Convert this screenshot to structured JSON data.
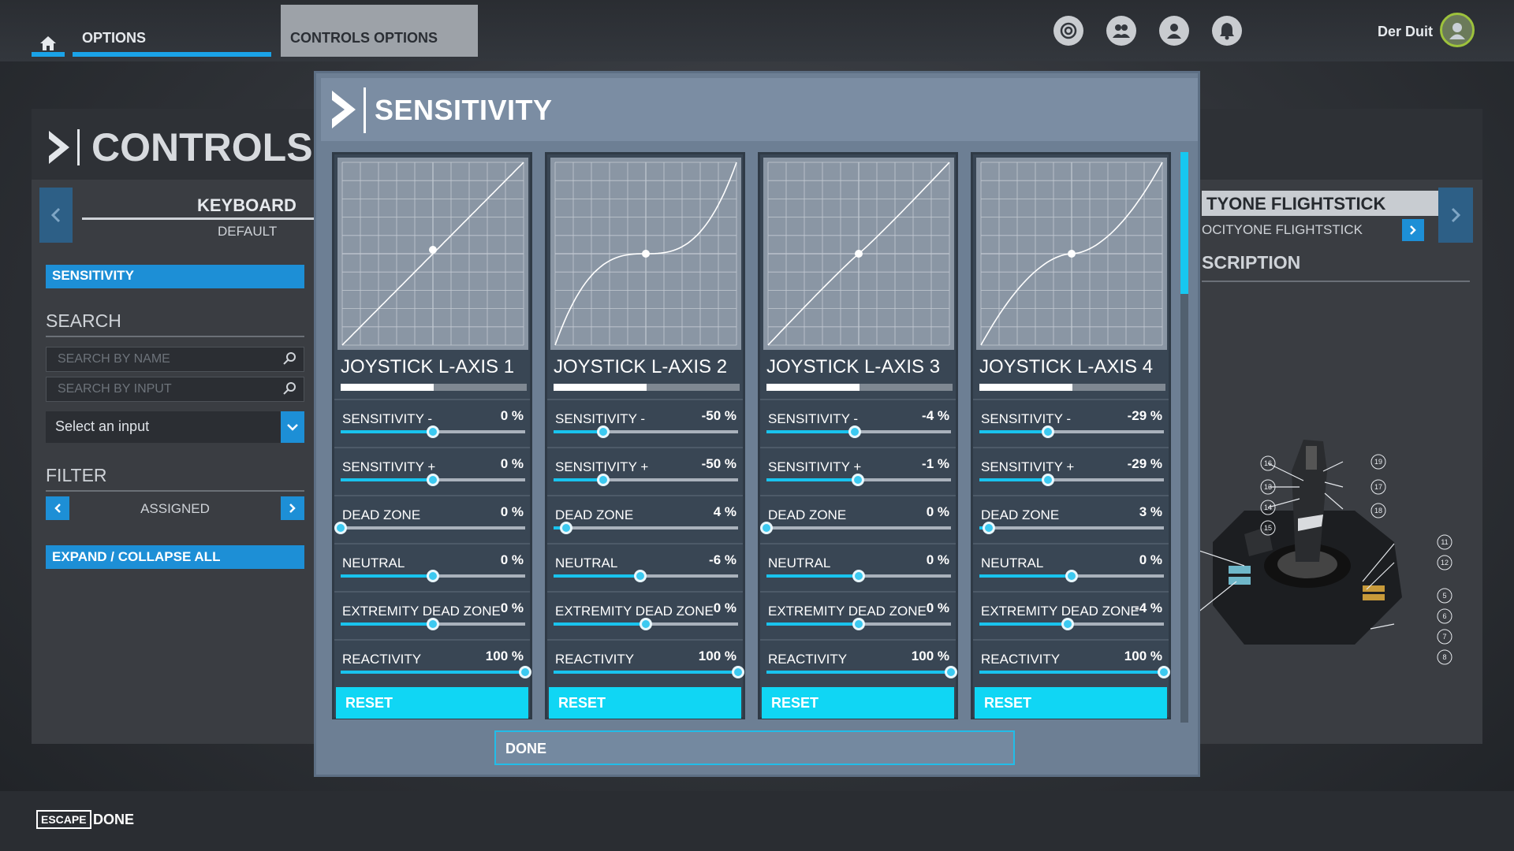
{
  "topbar": {
    "tab_options": "OPTIONS",
    "tab_controls_options": "CONTROLS OPTIONS",
    "icons": [
      "achievements-icon",
      "friends-icon",
      "profile-icon",
      "notifications-icon"
    ],
    "user_name": "Der Duit"
  },
  "left_panel": {
    "title": "CONTROLS OPTIONS",
    "device_title": "KEYBOARD",
    "device_profile": "DEFAULT",
    "sensitivity_button": "SENSITIVITY",
    "search_label": "SEARCH",
    "search_by_name_placeholder": "SEARCH BY NAME",
    "search_by_input_placeholder": "SEARCH BY INPUT",
    "select_input_label": "Select an input",
    "filter_label": "FILTER",
    "filter_value": "ASSIGNED",
    "expand_collapse_label": "EXPAND / COLLAPSE ALL"
  },
  "right_panel": {
    "device_title": "TYONE FLIGHTSTICK",
    "device_subtitle": "OCITYONE FLIGHTSTICK",
    "description_label": "SCRIPTION",
    "callouts": [
      "16",
      "13",
      "14",
      "15",
      "19",
      "17",
      "18",
      "11",
      "12",
      "5",
      "6",
      "7",
      "8"
    ]
  },
  "modal": {
    "title": "SENSITIVITY",
    "reset_label": "RESET",
    "done_label": "DONE",
    "scroll_position": 0,
    "axes": [
      {
        "name": "JOYSTICK L-AXIS 1",
        "output_level": 0.5,
        "curve_exponent": 1.0,
        "rows": [
          {
            "label": "SENSITIVITY -",
            "value": "0 %",
            "level": 0.5
          },
          {
            "label": "SENSITIVITY +",
            "value": "0 %",
            "level": 0.5
          },
          {
            "label": "DEAD ZONE",
            "value": "0 %",
            "level": 0.0
          },
          {
            "label": "NEUTRAL",
            "value": "0 %",
            "level": 0.5
          },
          {
            "label": "EXTREMITY DEAD ZONE",
            "value": "0 %",
            "level": 0.5
          },
          {
            "label": "REACTIVITY",
            "value": "100 %",
            "level": 1.0
          }
        ]
      },
      {
        "name": "JOYSTICK L-AXIS 2",
        "output_level": 0.5,
        "curve_exponent": 2.8,
        "rows": [
          {
            "label": "SENSITIVITY -",
            "value": "-50 %",
            "level": 0.27
          },
          {
            "label": "SENSITIVITY +",
            "value": "-50 %",
            "level": 0.27
          },
          {
            "label": "DEAD ZONE",
            "value": "4 %",
            "level": 0.07
          },
          {
            "label": "NEUTRAL",
            "value": "-6 %",
            "level": 0.47
          },
          {
            "label": "EXTREMITY DEAD ZONE",
            "value": "0 %",
            "level": 0.5
          },
          {
            "label": "REACTIVITY",
            "value": "100 %",
            "level": 1.0
          }
        ]
      },
      {
        "name": "JOYSTICK L-AXIS 3",
        "output_level": 0.5,
        "curve_exponent": 1.05,
        "rows": [
          {
            "label": "SENSITIVITY -",
            "value": "-4 %",
            "level": 0.48
          },
          {
            "label": "SENSITIVITY +",
            "value": "-1 %",
            "level": 0.495
          },
          {
            "label": "DEAD ZONE",
            "value": "0 %",
            "level": 0.0
          },
          {
            "label": "NEUTRAL",
            "value": "0 %",
            "level": 0.5
          },
          {
            "label": "EXTREMITY DEAD ZONE",
            "value": "0 %",
            "level": 0.5
          },
          {
            "label": "REACTIVITY",
            "value": "100 %",
            "level": 1.0
          }
        ]
      },
      {
        "name": "JOYSTICK L-AXIS 4",
        "output_level": 0.5,
        "curve_exponent": 1.8,
        "rows": [
          {
            "label": "SENSITIVITY -",
            "value": "-29 %",
            "level": 0.37
          },
          {
            "label": "SENSITIVITY +",
            "value": "-29 %",
            "level": 0.37
          },
          {
            "label": "DEAD ZONE",
            "value": "3 %",
            "level": 0.05
          },
          {
            "label": "NEUTRAL",
            "value": "0 %",
            "level": 0.5
          },
          {
            "label": "EXTREMITY DEAD ZONE",
            "value": "-4 %",
            "level": 0.48
          },
          {
            "label": "REACTIVITY",
            "value": "100 %",
            "level": 1.0
          }
        ]
      }
    ]
  },
  "bottombar": {
    "escape_key": "ESCAPE",
    "escape_action": "DONE"
  },
  "colors": {
    "accent": "#1d8fd6",
    "slider": "#19c3ee",
    "reset": "#10d6f4",
    "modal_bg": "#6d7f94"
  }
}
